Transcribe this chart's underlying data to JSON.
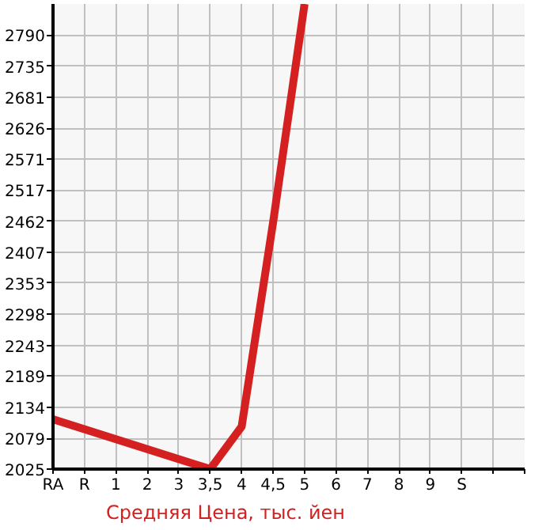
{
  "chart_data": {
    "type": "line",
    "categories": [
      "RA",
      "R",
      "1",
      "2",
      "3",
      "3,5",
      "4",
      "4,5",
      "5",
      "6",
      "7",
      "8",
      "9",
      "S",
      null,
      null
    ],
    "series": [
      {
        "name": "Средняя Цена, тыс. йен",
        "color": "#d42020",
        "values": [
          2113,
          null,
          null,
          null,
          null,
          2025,
          2100,
          2460,
          2845,
          null,
          null,
          null,
          null,
          null,
          null,
          null
        ]
      }
    ],
    "ylim": [
      2025,
      2845
    ],
    "yticks": [
      2025,
      2079,
      2134,
      2189,
      2243,
      2298,
      2353,
      2407,
      2462,
      2517,
      2571,
      2626,
      2681,
      2735,
      2790
    ],
    "grid": true,
    "legend": "bottom",
    "marker": "none",
    "line_style": "solid"
  }
}
